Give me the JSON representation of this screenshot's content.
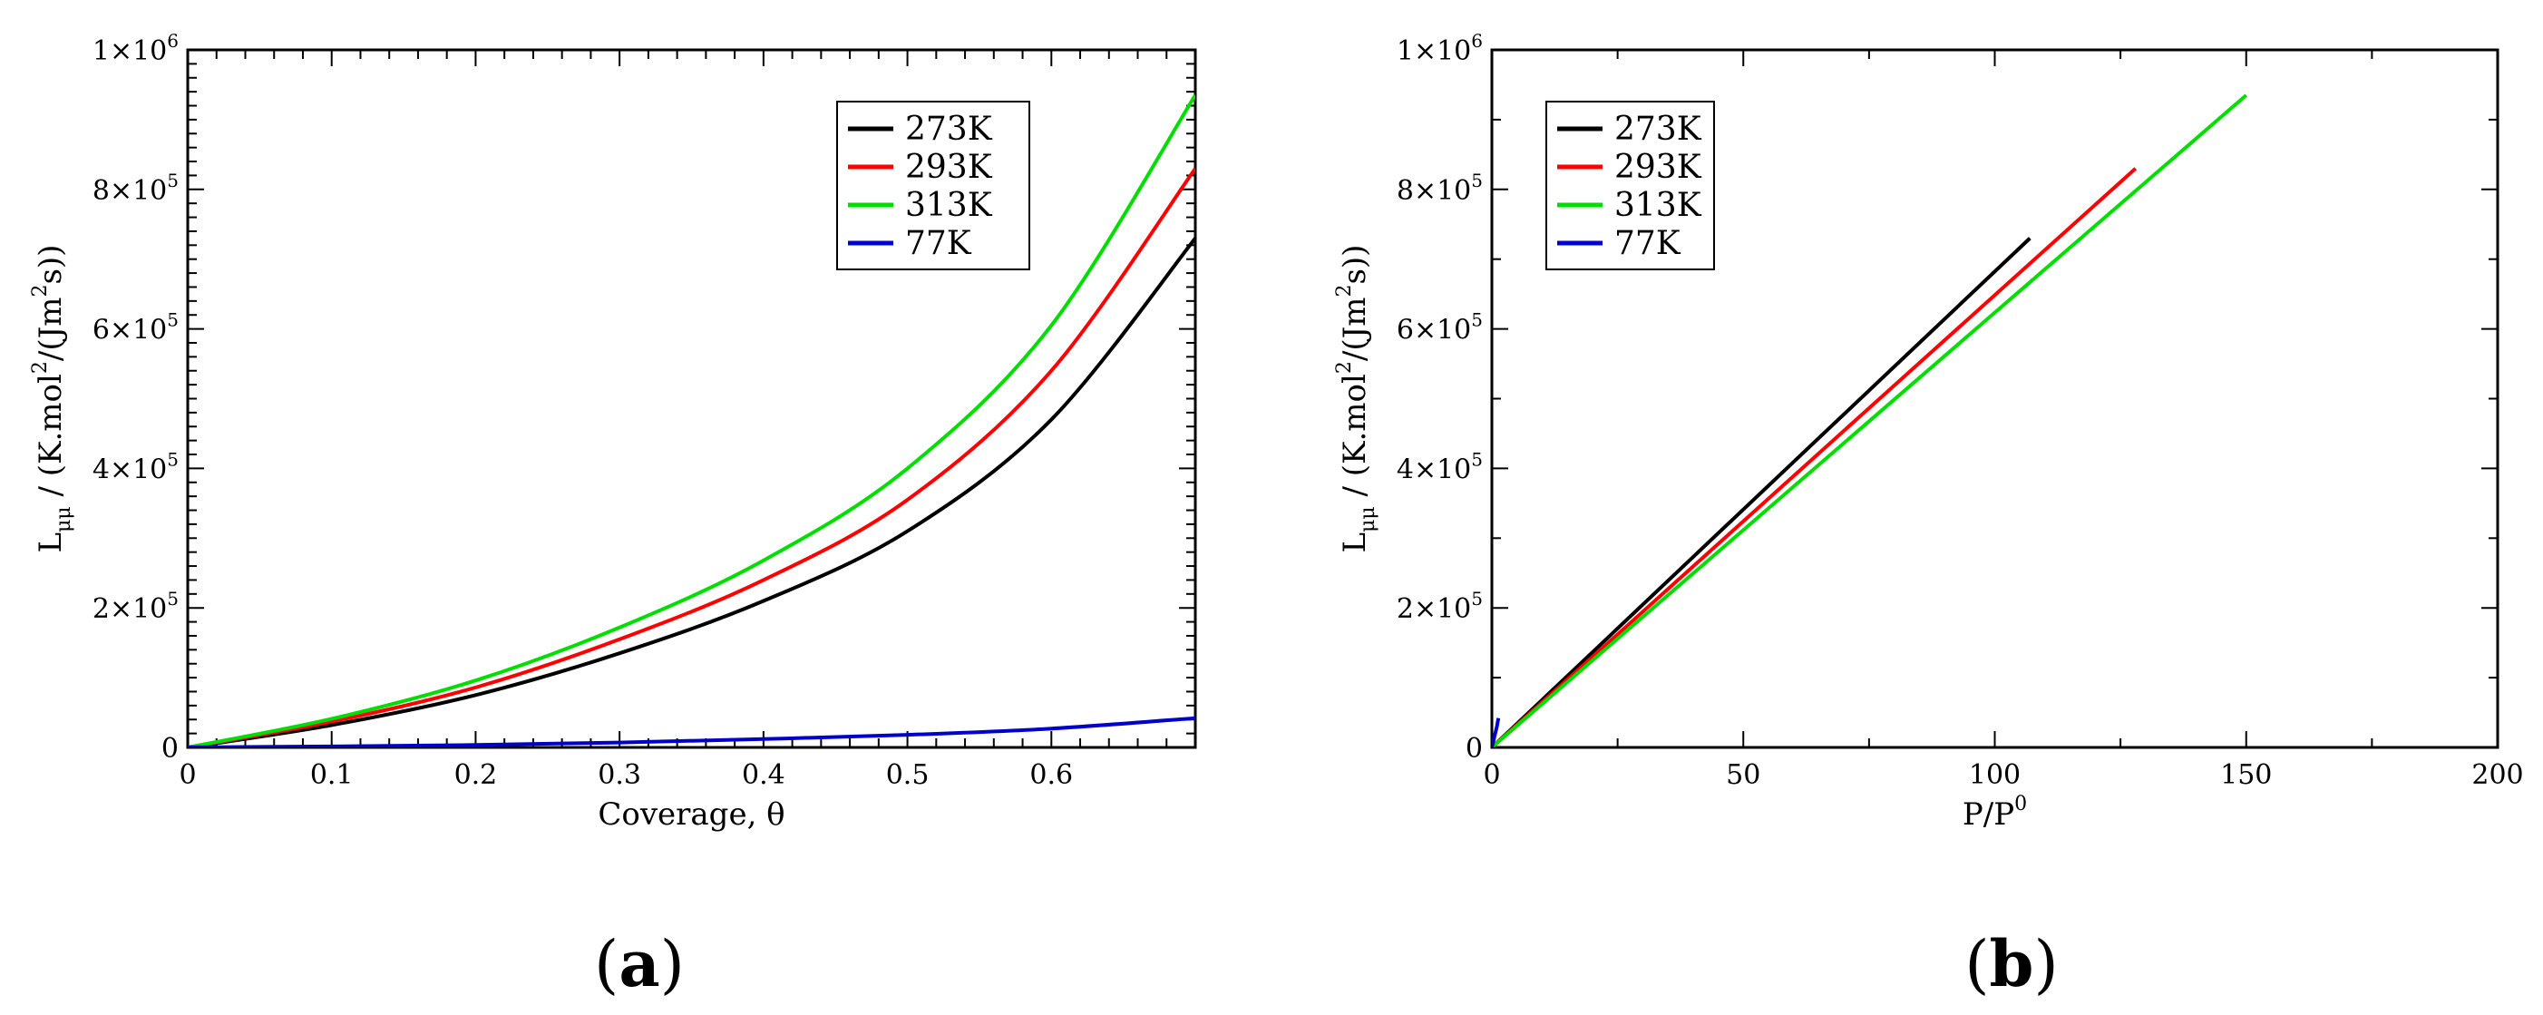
{
  "figure": {
    "panel_labels": [
      "a",
      "b"
    ],
    "colors": {
      "273K": "#000000",
      "293K": "#ff0000",
      "313K": "#00dd00",
      "77K": "#0000cc"
    }
  },
  "chart_data": [
    {
      "type": "line",
      "panel": "a",
      "xlabel": "Coverage, θ",
      "ylabel": "L_μμ / (K.mol^2/(Jm^2s))",
      "ylabel_parts": {
        "main": "L",
        "sub": "μμ",
        "unit_pre": " / (K.mol",
        "sup1": "2",
        "unit_mid": "/(Jm",
        "sup2": "2",
        "unit_post": "s))"
      },
      "xlim": [
        0,
        0.7
      ],
      "ylim": [
        0,
        1000000
      ],
      "xticks": [
        0,
        0.1,
        0.2,
        0.3,
        0.4,
        0.5,
        0.6
      ],
      "xtick_labels": [
        "0",
        "0.1",
        "0.2",
        "0.3",
        "0.4",
        "0.5",
        "0.6"
      ],
      "yticks": [
        0,
        200000,
        400000,
        600000,
        800000,
        1000000
      ],
      "ytick_labels": [
        {
          "base": "0",
          "exp": ""
        },
        {
          "base": "2×10",
          "exp": "5"
        },
        {
          "base": "4×10",
          "exp": "5"
        },
        {
          "base": "6×10",
          "exp": "5"
        },
        {
          "base": "8×10",
          "exp": "5"
        },
        {
          "base": "1×10",
          "exp": "6"
        }
      ],
      "legend": [
        "273K",
        "293K",
        "313K",
        "77K"
      ],
      "legend_position": "top-right",
      "series": [
        {
          "name": "273K",
          "x": [
            0,
            0.1,
            0.2,
            0.3,
            0.4,
            0.5,
            0.6,
            0.7
          ],
          "y": [
            0,
            32000,
            75000,
            135000,
            210000,
            310000,
            470000,
            730000
          ]
        },
        {
          "name": "293K",
          "x": [
            0,
            0.1,
            0.2,
            0.3,
            0.4,
            0.5,
            0.6,
            0.7
          ],
          "y": [
            0,
            37000,
            86000,
            155000,
            240000,
            355000,
            540000,
            830000
          ]
        },
        {
          "name": "313K",
          "x": [
            0,
            0.1,
            0.2,
            0.3,
            0.4,
            0.5,
            0.6,
            0.7
          ],
          "y": [
            0,
            41000,
            96000,
            172000,
            268000,
            400000,
            605000,
            935000
          ]
        },
        {
          "name": "77K",
          "x": [
            0,
            0.1,
            0.2,
            0.3,
            0.4,
            0.5,
            0.6,
            0.7
          ],
          "y": [
            0,
            1500,
            3500,
            7000,
            12000,
            18000,
            27000,
            42000
          ]
        }
      ]
    },
    {
      "type": "line",
      "panel": "b",
      "xlabel": "P/P",
      "xlabel_sup": "0",
      "ylabel": "L_μμ / (K.mol^2/(Jm^2s))",
      "ylabel_parts": {
        "main": "L",
        "sub": "μμ",
        "unit_pre": " / (K.mol",
        "sup1": "2",
        "unit_mid": "/(Jm",
        "sup2": "2",
        "unit_post": "s))"
      },
      "xlim": [
        0,
        200
      ],
      "ylim": [
        0,
        1000000
      ],
      "xticks": [
        0,
        50,
        100,
        150,
        200
      ],
      "xtick_labels": [
        "0",
        "50",
        "100",
        "150",
        "200"
      ],
      "yticks": [
        0,
        200000,
        400000,
        600000,
        800000,
        1000000
      ],
      "ytick_labels": [
        {
          "base": "0",
          "exp": ""
        },
        {
          "base": "2×10",
          "exp": "5"
        },
        {
          "base": "4×10",
          "exp": "5"
        },
        {
          "base": "6×10",
          "exp": "5"
        },
        {
          "base": "8×10",
          "exp": "5"
        },
        {
          "base": "1×10",
          "exp": "6"
        }
      ],
      "legend": [
        "273K",
        "293K",
        "313K",
        "77K"
      ],
      "legend_position": "top-left",
      "series": [
        {
          "name": "273K",
          "x": [
            0,
            107
          ],
          "y": [
            0,
            730000
          ]
        },
        {
          "name": "293K",
          "x": [
            0,
            128
          ],
          "y": [
            0,
            830000
          ]
        },
        {
          "name": "313K",
          "x": [
            0,
            150
          ],
          "y": [
            0,
            935000
          ]
        },
        {
          "name": "77K",
          "x": [
            0,
            0.5,
            1,
            1.3
          ],
          "y": [
            0,
            15000,
            30000,
            42000
          ]
        }
      ]
    }
  ]
}
